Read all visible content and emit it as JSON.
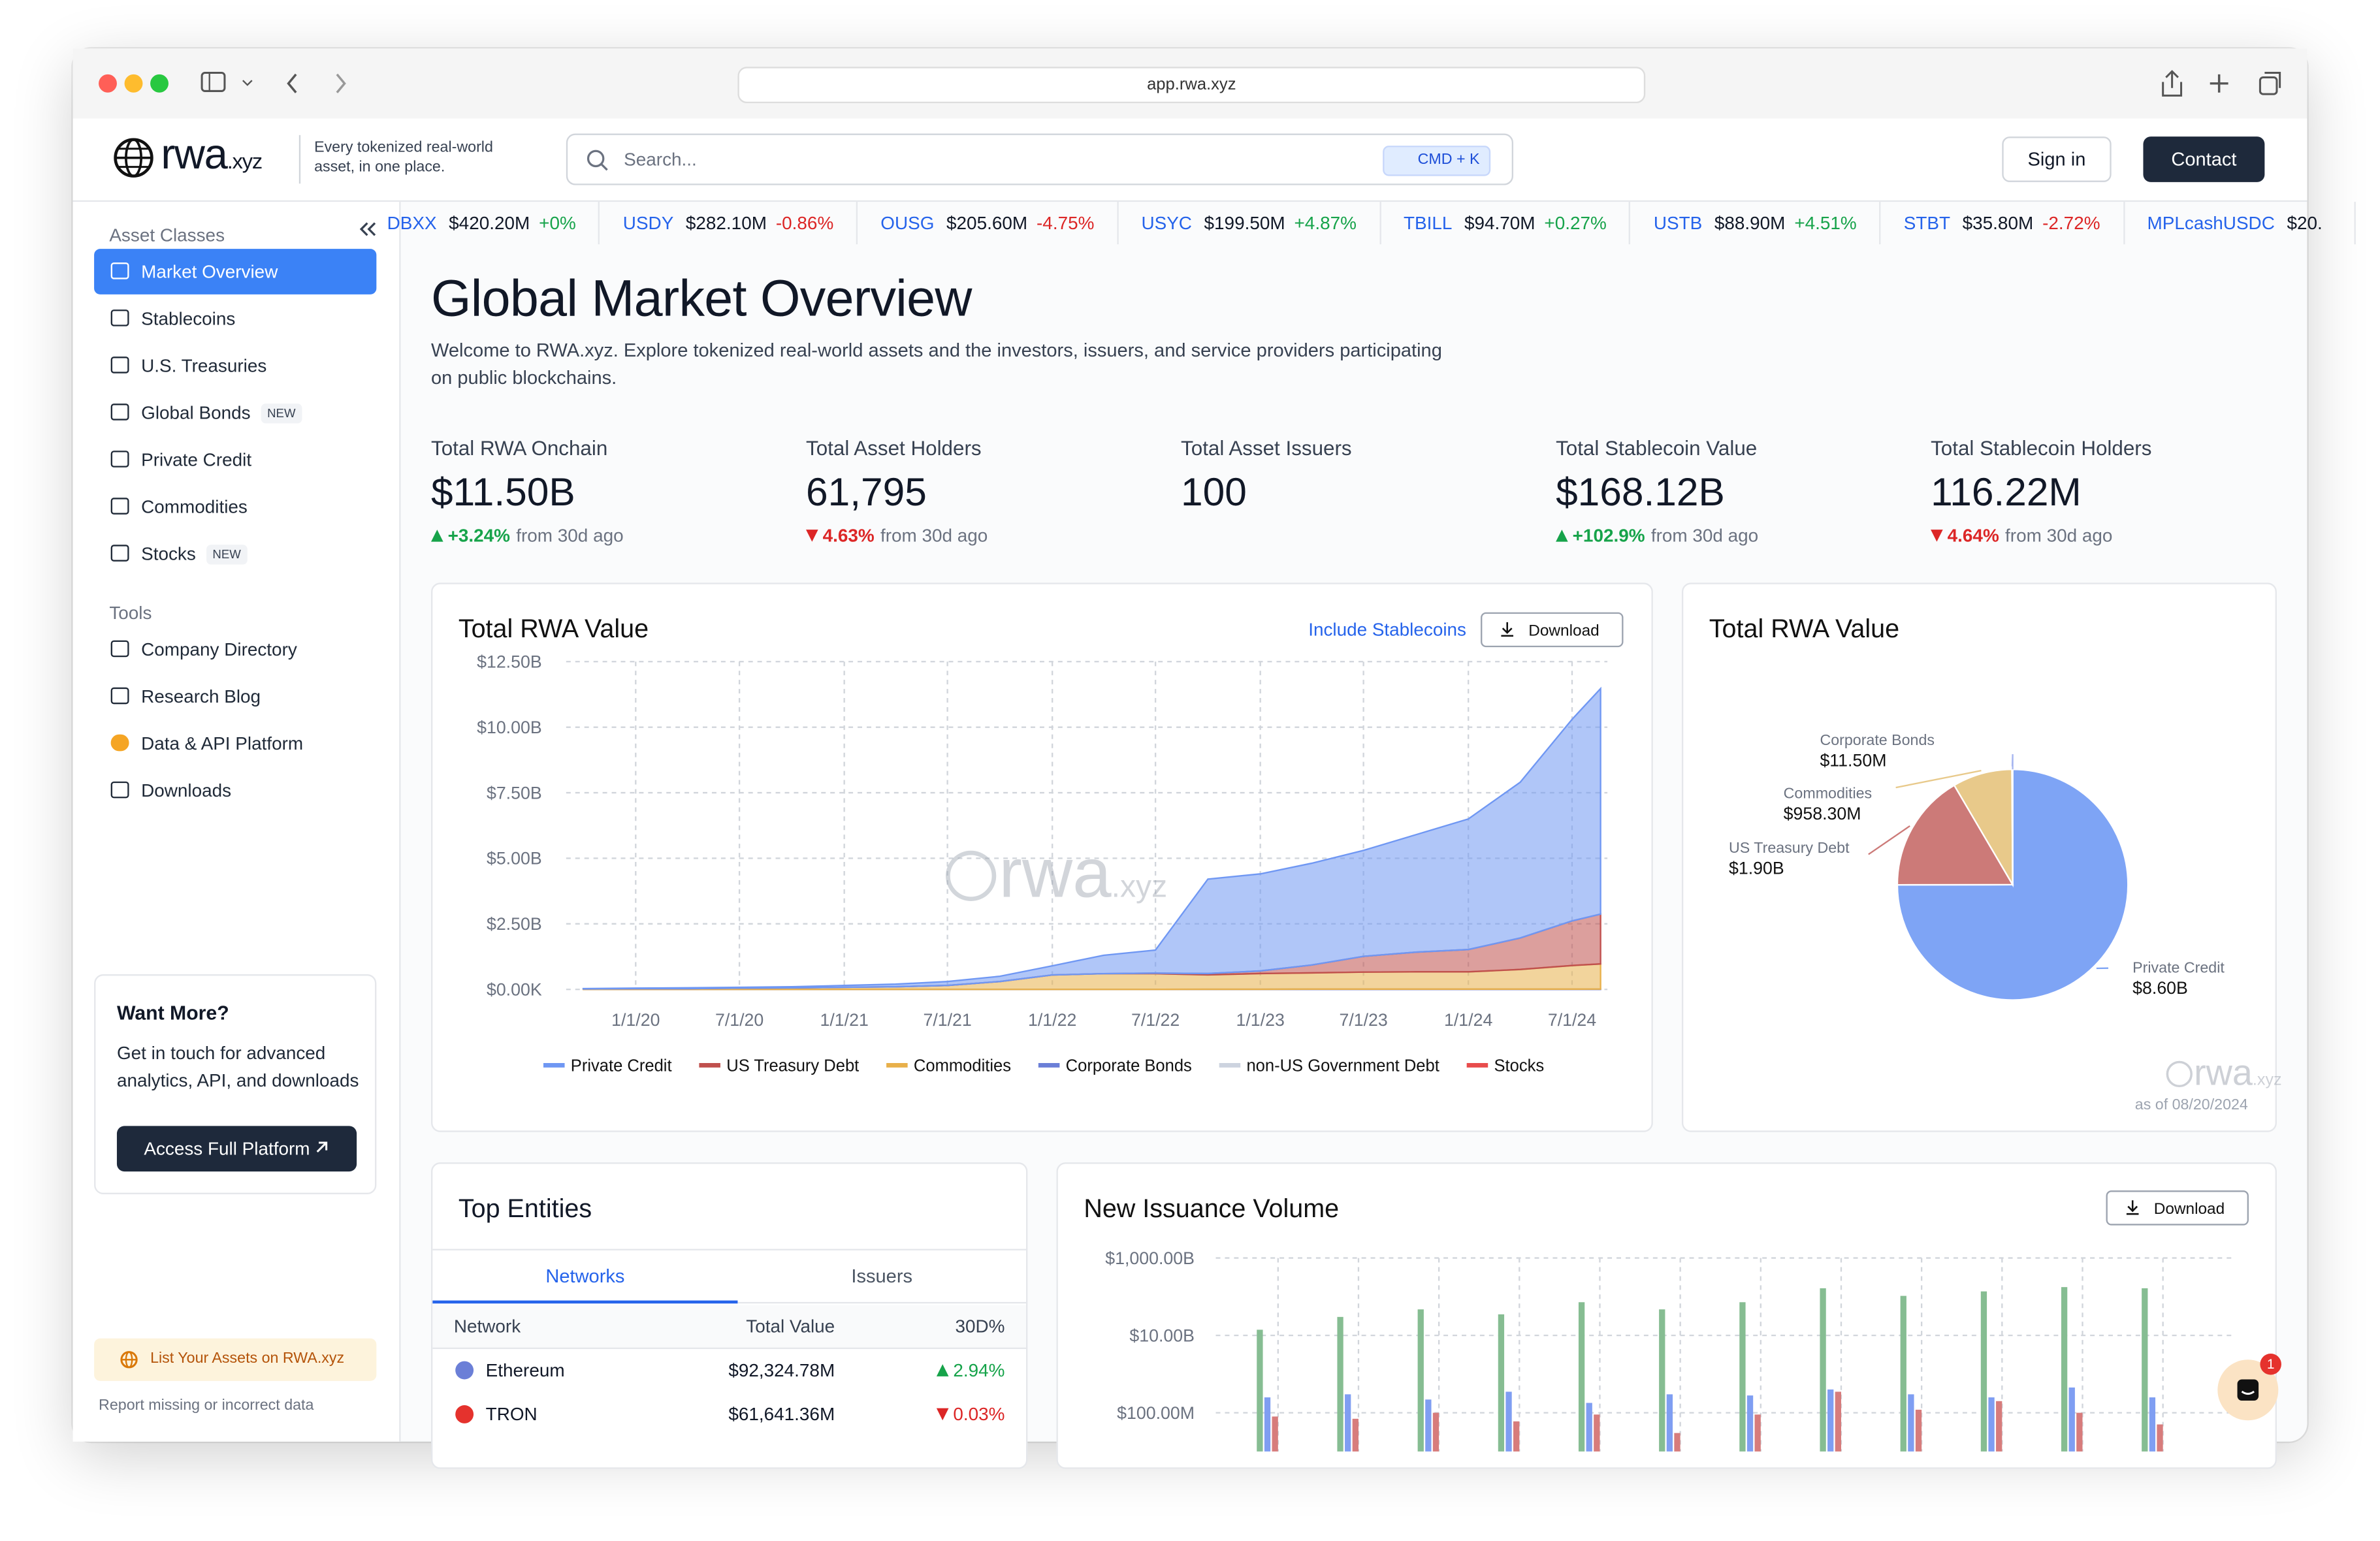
{
  "browser": {
    "url": "app.rwa.xyz"
  },
  "header": {
    "logo": "rwa",
    "logo_suffix": ".xyz",
    "tagline": "Every tokenized real-world asset, in one place.",
    "search_placeholder": "Search...",
    "shortcut": "CMD + K",
    "sign_in": "Sign in",
    "contact": "Contact"
  },
  "ticker": [
    {
      "symbol": "DBXX",
      "value": "$420.20M",
      "change": "+0%",
      "direction": "up"
    },
    {
      "symbol": "USDY",
      "value": "$282.10M",
      "change": "-0.86%",
      "direction": "down"
    },
    {
      "symbol": "OUSG",
      "value": "$205.60M",
      "change": "-4.75%",
      "direction": "down"
    },
    {
      "symbol": "USYC",
      "value": "$199.50M",
      "change": "+4.87%",
      "direction": "up"
    },
    {
      "symbol": "TBILL",
      "value": "$94.70M",
      "change": "+0.27%",
      "direction": "up"
    },
    {
      "symbol": "USTB",
      "value": "$88.90M",
      "change": "+4.51%",
      "direction": "up"
    },
    {
      "symbol": "STBT",
      "value": "$35.80M",
      "change": "-2.72%",
      "direction": "down"
    },
    {
      "symbol": "MPLcashUSDC",
      "value": "$20."
    }
  ],
  "sidebar": {
    "asset_classes_label": "Asset Classes",
    "asset_classes": [
      {
        "label": "Market Overview",
        "active": true
      },
      {
        "label": "Stablecoins"
      },
      {
        "label": "U.S. Treasuries"
      },
      {
        "label": "Global Bonds",
        "badge": "NEW"
      },
      {
        "label": "Private Credit"
      },
      {
        "label": "Commodities"
      },
      {
        "label": "Stocks",
        "badge": "NEW"
      }
    ],
    "tools_label": "Tools",
    "tools": [
      "Company Directory",
      "Research Blog",
      "Data & API Platform",
      "Downloads"
    ],
    "promo": {
      "title": "Want More?",
      "text": "Get in touch for advanced analytics, API, and downloads",
      "button": "Access Full Platform"
    },
    "list_assets": "List Your Assets on RWA.xyz",
    "report": "Report missing or incorrect data"
  },
  "overview": {
    "title": "Global Market Overview",
    "description": "Welcome to RWA.xyz. Explore tokenized real-world assets and the investors, issuers, and service providers participating on public blockchains.",
    "stats": [
      {
        "label": "Total RWA Onchain",
        "value": "$11.50B",
        "change": "+3.24%",
        "direction": "up",
        "note": "from 30d ago"
      },
      {
        "label": "Total Asset Holders",
        "value": "61,795",
        "change": "4.63%",
        "direction": "down",
        "note": "from 30d ago"
      },
      {
        "label": "Total Asset Issuers",
        "value": "100"
      },
      {
        "label": "Total Stablecoin Value",
        "value": "$168.12B",
        "change": "+102.9%",
        "direction": "up",
        "note": "from 30d ago"
      },
      {
        "label": "Total Stablecoin Holders",
        "value": "116.22M",
        "change": "4.64%",
        "direction": "down",
        "note": "from 30d ago"
      }
    ]
  },
  "chart_data": [
    {
      "type": "area",
      "title": "Total RWA Value",
      "link": "Include Stablecoins",
      "button": "Download",
      "x": [
        "2019-10-01",
        "2020-01-01",
        "2020-04-01",
        "2020-07-01",
        "2020-10-01",
        "2021-01-01",
        "2021-04-01",
        "2021-07-01",
        "2021-10-01",
        "2022-01-01",
        "2022-04-01",
        "2022-07-01",
        "2022-10-01",
        "2023-01-01",
        "2023-04-01",
        "2023-07-01",
        "2023-10-01",
        "2024-01-01",
        "2024-04-01",
        "2024-07-01",
        "2024-08-20"
      ],
      "xlim": [
        "2019-09-01",
        "2024-09-01"
      ],
      "xticks": [
        {
          "value": "2020-01-01",
          "label": "1/1/20"
        },
        {
          "value": "2020-07-01",
          "label": "7/1/20"
        },
        {
          "value": "2021-01-01",
          "label": "1/1/21"
        },
        {
          "value": "2021-07-01",
          "label": "7/1/21"
        },
        {
          "value": "2022-01-01",
          "label": "1/1/22"
        },
        {
          "value": "2022-07-01",
          "label": "7/1/22"
        },
        {
          "value": "2023-01-01",
          "label": "1/1/23"
        },
        {
          "value": "2023-07-01",
          "label": "7/1/23"
        },
        {
          "value": "2024-01-01",
          "label": "1/1/24"
        },
        {
          "value": "2024-07-01",
          "label": "7/1/24"
        }
      ],
      "ylim": [
        0,
        12.5
      ],
      "yticks": [
        {
          "value": 0,
          "label": "$0.00K"
        },
        {
          "value": 2.5,
          "label": "$2.50B"
        },
        {
          "value": 5,
          "label": "$5.00B"
        },
        {
          "value": 7.5,
          "label": "$7.50B"
        },
        {
          "value": 10,
          "label": "$10.00B"
        },
        {
          "value": 12.5,
          "label": "$12.50B"
        }
      ],
      "grid": true,
      "stacked": true,
      "series": [
        {
          "name": "Private Credit",
          "color": "#6f97f3",
          "values": [
            0.01,
            0.02,
            0.03,
            0.03,
            0.04,
            0.07,
            0.1,
            0.15,
            0.2,
            0.35,
            0.7,
            0.88,
            3.6,
            3.7,
            3.88,
            4.04,
            4.48,
            4.98,
            5.94,
            7.69,
            8.6
          ]
        },
        {
          "name": "US Treasury Debt",
          "color": "#c0504d",
          "values": [
            0,
            0,
            0,
            0,
            0,
            0,
            0,
            0,
            0,
            0,
            0,
            0.02,
            0.05,
            0.1,
            0.3,
            0.6,
            0.75,
            0.85,
            1.2,
            1.7,
            1.9
          ]
        },
        {
          "name": "Commodities",
          "color": "#e8b04a",
          "values": [
            0.02,
            0.03,
            0.03,
            0.05,
            0.06,
            0.08,
            0.1,
            0.15,
            0.3,
            0.55,
            0.6,
            0.6,
            0.55,
            0.6,
            0.62,
            0.65,
            0.66,
            0.66,
            0.75,
            0.9,
            0.96
          ]
        },
        {
          "name": "Corporate Bonds",
          "color": "#6b7fd7",
          "values": [
            0,
            0,
            0,
            0,
            0,
            0,
            0,
            0,
            0,
            0,
            0,
            0,
            0.005,
            0.005,
            0.01,
            0.01,
            0.01,
            0.01,
            0.01,
            0.01,
            0.0115
          ]
        },
        {
          "name": "non-US Government Debt",
          "color": "#cdd3df",
          "values": [
            0,
            0,
            0,
            0,
            0,
            0,
            0,
            0,
            0,
            0,
            0,
            0,
            0,
            0,
            0,
            0,
            0,
            0,
            0,
            0,
            0
          ]
        },
        {
          "name": "Stocks",
          "color": "#e84c4c",
          "values": [
            0,
            0,
            0,
            0,
            0,
            0,
            0,
            0,
            0,
            0,
            0,
            0,
            0,
            0,
            0,
            0,
            0,
            0,
            0,
            0,
            0
          ]
        }
      ]
    },
    {
      "type": "pie",
      "title": "Total RWA Value",
      "categories": [
        "Private Credit",
        "US Treasury Debt",
        "Commodities",
        "Corporate Bonds"
      ],
      "values": [
        8600000000,
        1900000000,
        958300000,
        11500000
      ],
      "value_labels": [
        "$8.60B",
        "$1.90B",
        "$958.30M",
        "$11.50M"
      ],
      "colors": [
        "#7ea4f5",
        "#cc7a78",
        "#e8c98a",
        "#a7b6f0"
      ],
      "footnote": "as of 08/20/2024"
    },
    {
      "type": "bar",
      "title": "New Issuance Volume",
      "button": "Download",
      "log_scale": true,
      "ylim": [
        0.01,
        1000
      ],
      "yticks": [
        {
          "value": 1000,
          "label": "$1,000.00B"
        },
        {
          "value": 10,
          "label": "$10.00B"
        },
        {
          "value": 0.1,
          "label": "$100.00M"
        }
      ],
      "grid": true,
      "categories": [
        null,
        null,
        null,
        null,
        null,
        null,
        null,
        null,
        null,
        null,
        null,
        null
      ],
      "series": [
        {
          "color": "#86bd92",
          "values": [
            14,
            30,
            47,
            35,
            72,
            47,
            72,
            165,
            105,
            137,
            177,
            165
          ]
        },
        {
          "color": "#7f9ef2",
          "values": [
            0.25,
            0.3,
            0.22,
            0.35,
            0.18,
            0.3,
            0.28,
            0.4,
            0.3,
            0.25,
            0.45,
            0.25
          ]
        },
        {
          "color": "#d77c7c",
          "values": [
            0.08,
            0.07,
            0.1,
            0.06,
            0.09,
            0.03,
            0.09,
            0.35,
            0.12,
            0.2,
            0.1,
            0.05
          ]
        }
      ]
    }
  ],
  "entities": {
    "title": "Top Entities",
    "tabs": [
      {
        "label": "Networks",
        "active": true
      },
      {
        "label": "Issuers"
      }
    ],
    "columns": [
      "Network",
      "Total Value",
      "30D%"
    ],
    "rows": [
      {
        "name": "Ethereum",
        "value": "$92,324.78M",
        "change": "2.94%",
        "direction": "up",
        "icon": "#6b7fd7"
      },
      {
        "name": "TRON",
        "value": "$61,641.36M",
        "change": "0.03%",
        "direction": "down",
        "icon": "#e5322d"
      }
    ]
  },
  "chat_badge": 1
}
